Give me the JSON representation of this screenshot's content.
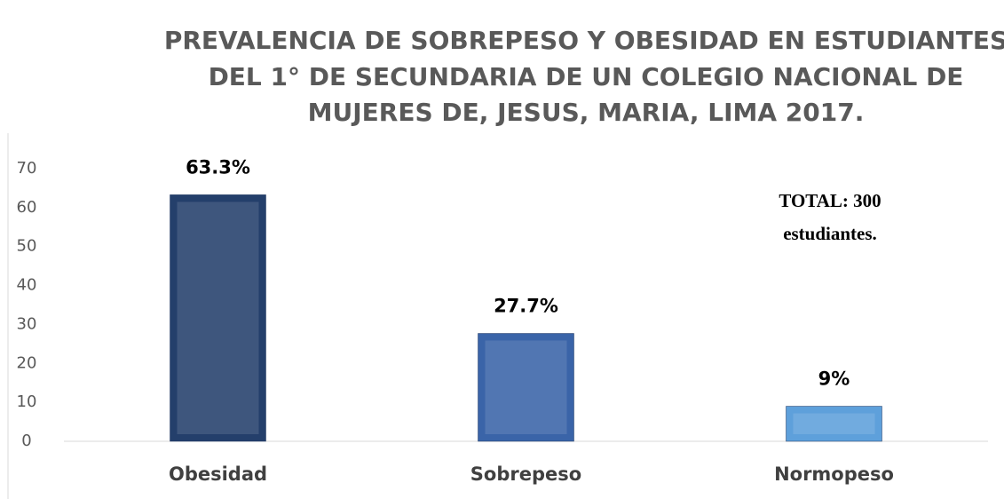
{
  "chart_data": {
    "type": "bar",
    "title": [
      "PREVALENCIA DE SOBREPESO Y OBESIDAD EN ESTUDIANTES",
      "DEL 1° DE SECUNDARIA DE UN COLEGIO NACIONAL DE",
      "MUJERES DE, JESUS, MARIA, LIMA 2017."
    ],
    "annotation": [
      "TOTAL: 300",
      "estudiantes."
    ],
    "categories": [
      "Obesidad",
      "Sobrepeso",
      "Normopeso"
    ],
    "values": [
      63.3,
      27.7,
      9
    ],
    "value_labels": [
      "63.3%",
      "27.7%",
      "9%"
    ],
    "colors": [
      "#243f6b",
      "#3a64a8",
      "#5ea0db"
    ],
    "ylim": [
      0,
      70
    ],
    "yticks": [
      0,
      10,
      20,
      30,
      40,
      50,
      60,
      70
    ],
    "grid": false
  }
}
